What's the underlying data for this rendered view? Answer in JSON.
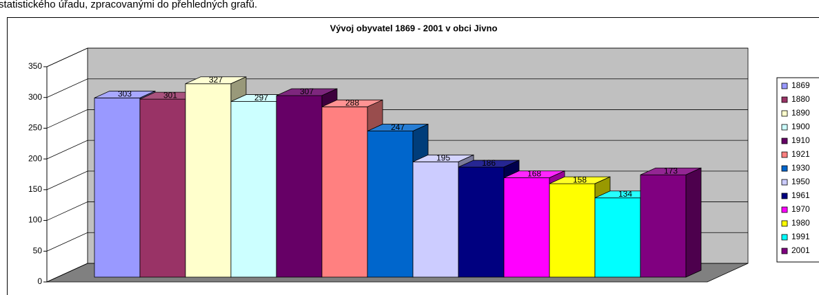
{
  "intro_text": "statistického úřadu, zpracovanými do přehledných grafů.",
  "chart_data": {
    "type": "bar3d",
    "title": "Vývoj obyvatel 1869 - 2001 v obci Jivno",
    "series": [
      {
        "name": "1869",
        "color": "#9999ff",
        "values": [
          303
        ]
      },
      {
        "name": "1880",
        "color": "#993366",
        "values": [
          301
        ]
      },
      {
        "name": "1890",
        "color": "#ffffcc",
        "values": [
          327
        ]
      },
      {
        "name": "1900",
        "color": "#ccffff",
        "values": [
          297
        ]
      },
      {
        "name": "1910",
        "color": "#660066",
        "values": [
          307
        ]
      },
      {
        "name": "1921",
        "color": "#ff8080",
        "values": [
          288
        ]
      },
      {
        "name": "1930",
        "color": "#0066cc",
        "values": [
          247
        ]
      },
      {
        "name": "1950",
        "color": "#ccccff",
        "values": [
          195
        ]
      },
      {
        "name": "1961",
        "color": "#000080",
        "values": [
          186
        ]
      },
      {
        "name": "1970",
        "color": "#ff00ff",
        "values": [
          168
        ]
      },
      {
        "name": "1980",
        "color": "#ffff00",
        "values": [
          158
        ]
      },
      {
        "name": "1991",
        "color": "#00ffff",
        "values": [
          134
        ]
      },
      {
        "name": "2001",
        "color": "#800080",
        "values": [
          173
        ]
      }
    ],
    "ylim": [
      0,
      350
    ],
    "yticks": [
      0,
      50,
      100,
      150,
      200,
      250,
      300,
      350
    ],
    "grid": true,
    "legend": "right"
  }
}
